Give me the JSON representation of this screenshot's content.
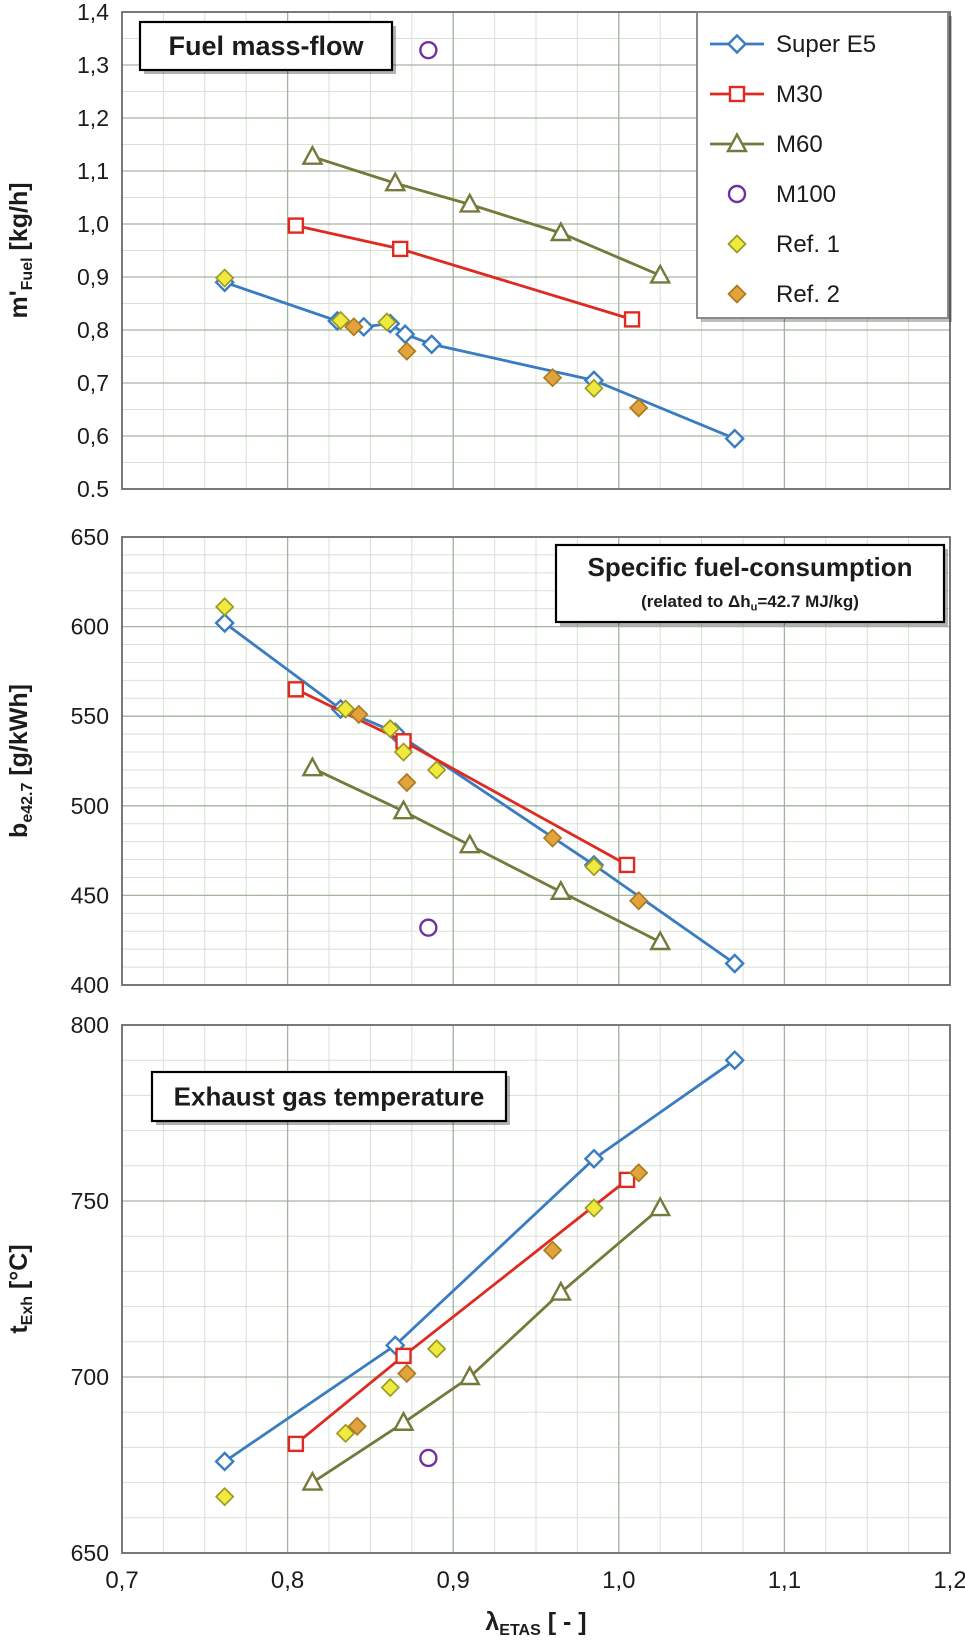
{
  "chart_data": {
    "type": "line",
    "x_axis": {
      "label": "λ_{ETAS} [ - ]",
      "lim": [
        0.7,
        1.2
      ],
      "tick_values": [
        0.7,
        0.8,
        0.9,
        1.0,
        1.1,
        1.2
      ],
      "tick_labels": [
        "0,7",
        "0,8",
        "0,9",
        "1,0",
        "1,1",
        "1,2"
      ],
      "minor_step": 0.025
    },
    "colors": {
      "background": "#FFFFFF",
      "grid_major": "#A3B5A0",
      "grid_minor": "#D8E1D4",
      "plot_border": "#6B6B6B",
      "text": "#1C1C1C",
      "title_box_border": "#000000",
      "legend_border": "#7F7F7F"
    },
    "styles": {
      "Super E5": {
        "marker": "diamond",
        "line": true,
        "stroke": "#3A7CC1",
        "fill": "#FFFFFF"
      },
      "M30": {
        "marker": "square",
        "line": true,
        "stroke": "#DE2A20",
        "fill": "#FFFFFF"
      },
      "M60": {
        "marker": "triangle",
        "line": true,
        "stroke": "#76793C",
        "fill": "#FFFFFF"
      },
      "M100": {
        "marker": "circle",
        "line": false,
        "stroke": "#7030A0",
        "fill": "#FFFFFF"
      },
      "Ref. 1": {
        "marker": "diamond",
        "line": false,
        "stroke": "#9A9A25",
        "fill": "#F0EA3E"
      },
      "Ref. 2": {
        "marker": "diamond",
        "line": false,
        "stroke": "#AA7B22",
        "fill": "#E2A33C"
      }
    },
    "legend": {
      "entries": [
        "Super E5",
        "M30",
        "M60",
        "M100",
        "Ref. 1",
        "Ref. 2"
      ]
    },
    "panels": [
      {
        "title": "Fuel mass-flow",
        "ylabel": "m'_{Fuel} [kg/h]",
        "ylim": [
          0.5,
          1.4
        ],
        "ytick_values": [
          0.5,
          0.6,
          0.7,
          0.8,
          0.9,
          1.0,
          1.1,
          1.2,
          1.3,
          1.4
        ],
        "ytick_labels": [
          "0,5",
          "0,6",
          "0,7",
          "0,8",
          "0,9",
          "1,0",
          "1,1",
          "1,2",
          "1,3",
          "1,4"
        ],
        "yminor_step": 0.05,
        "series": [
          {
            "name": "Super E5",
            "points": [
              [
                0.762,
                0.89
              ],
              [
                0.83,
                0.817
              ],
              [
                0.846,
                0.806
              ],
              [
                0.862,
                0.812
              ],
              [
                0.871,
                0.792
              ],
              [
                0.887,
                0.773
              ],
              [
                0.985,
                0.705
              ],
              [
                1.07,
                0.595
              ]
            ]
          },
          {
            "name": "M30",
            "points": [
              [
                0.805,
                0.997
              ],
              [
                0.868,
                0.953
              ],
              [
                1.008,
                0.82
              ]
            ]
          },
          {
            "name": "M60",
            "points": [
              [
                0.815,
                1.127
              ],
              [
                0.865,
                1.077
              ],
              [
                0.91,
                1.037
              ],
              [
                0.965,
                0.983
              ],
              [
                1.025,
                0.903
              ]
            ]
          },
          {
            "name": "M100",
            "points": [
              [
                0.885,
                1.328
              ]
            ]
          },
          {
            "name": "Ref. 1",
            "points": [
              [
                0.762,
                0.898
              ],
              [
                0.832,
                0.818
              ],
              [
                0.86,
                0.815
              ],
              [
                0.985,
                0.69
              ]
            ]
          },
          {
            "name": "Ref. 2",
            "points": [
              [
                0.84,
                0.806
              ],
              [
                0.872,
                0.76
              ],
              [
                0.96,
                0.71
              ],
              [
                1.012,
                0.653
              ]
            ]
          }
        ]
      },
      {
        "title": "Specific fuel-consumption",
        "subtitle": "(related to Δh_{u}=42.7 MJ/kg)",
        "ylabel": "b_{e42.7} [g/kWh]",
        "ylim": [
          400,
          650
        ],
        "ytick_values": [
          400,
          450,
          500,
          550,
          600,
          650
        ],
        "ytick_labels": [
          "400",
          "450",
          "500",
          "550",
          "600",
          "650"
        ],
        "yminor_step": 10,
        "series": [
          {
            "name": "Super E5",
            "points": [
              [
                0.762,
                602
              ],
              [
                0.832,
                554
              ],
              [
                0.865,
                541
              ],
              [
                0.985,
                467
              ],
              [
                1.07,
                412
              ]
            ]
          },
          {
            "name": "M30",
            "points": [
              [
                0.805,
                565
              ],
              [
                0.87,
                536
              ],
              [
                1.005,
                467
              ]
            ]
          },
          {
            "name": "M60",
            "points": [
              [
                0.815,
                521
              ],
              [
                0.87,
                497
              ],
              [
                0.91,
                478
              ],
              [
                0.965,
                452
              ],
              [
                1.025,
                424
              ]
            ]
          },
          {
            "name": "M100",
            "points": [
              [
                0.885,
                432
              ]
            ]
          },
          {
            "name": "Ref. 1",
            "points": [
              [
                0.762,
                611
              ],
              [
                0.835,
                554
              ],
              [
                0.862,
                543
              ],
              [
                0.87,
                530
              ],
              [
                0.89,
                520
              ],
              [
                0.985,
                466
              ]
            ]
          },
          {
            "name": "Ref. 2",
            "points": [
              [
                0.843,
                551
              ],
              [
                0.872,
                513
              ],
              [
                0.96,
                482
              ],
              [
                1.012,
                447
              ]
            ]
          }
        ]
      },
      {
        "title": "Exhaust gas temperature",
        "ylabel": "t_{Exh} [°C]",
        "ylim": [
          650,
          800
        ],
        "ytick_values": [
          650,
          700,
          750,
          800
        ],
        "ytick_labels": [
          "650",
          "700",
          "750",
          "800"
        ],
        "yminor_step": 10,
        "series": [
          {
            "name": "Super E5",
            "points": [
              [
                0.762,
                676
              ],
              [
                0.865,
                709
              ],
              [
                0.985,
                762
              ],
              [
                1.07,
                790
              ]
            ]
          },
          {
            "name": "M30",
            "points": [
              [
                0.805,
                681
              ],
              [
                0.87,
                706
              ],
              [
                1.005,
                756
              ]
            ]
          },
          {
            "name": "M60",
            "points": [
              [
                0.815,
                670
              ],
              [
                0.87,
                687
              ],
              [
                0.91,
                700
              ],
              [
                0.965,
                724
              ],
              [
                1.025,
                748
              ]
            ]
          },
          {
            "name": "M100",
            "points": [
              [
                0.885,
                677
              ]
            ]
          },
          {
            "name": "Ref. 1",
            "points": [
              [
                0.762,
                666
              ],
              [
                0.835,
                684
              ],
              [
                0.862,
                697
              ],
              [
                0.89,
                708
              ],
              [
                0.985,
                748
              ]
            ]
          },
          {
            "name": "Ref. 2",
            "points": [
              [
                0.842,
                686
              ],
              [
                0.872,
                701
              ],
              [
                0.96,
                736
              ],
              [
                1.012,
                758
              ]
            ]
          }
        ]
      }
    ]
  }
}
